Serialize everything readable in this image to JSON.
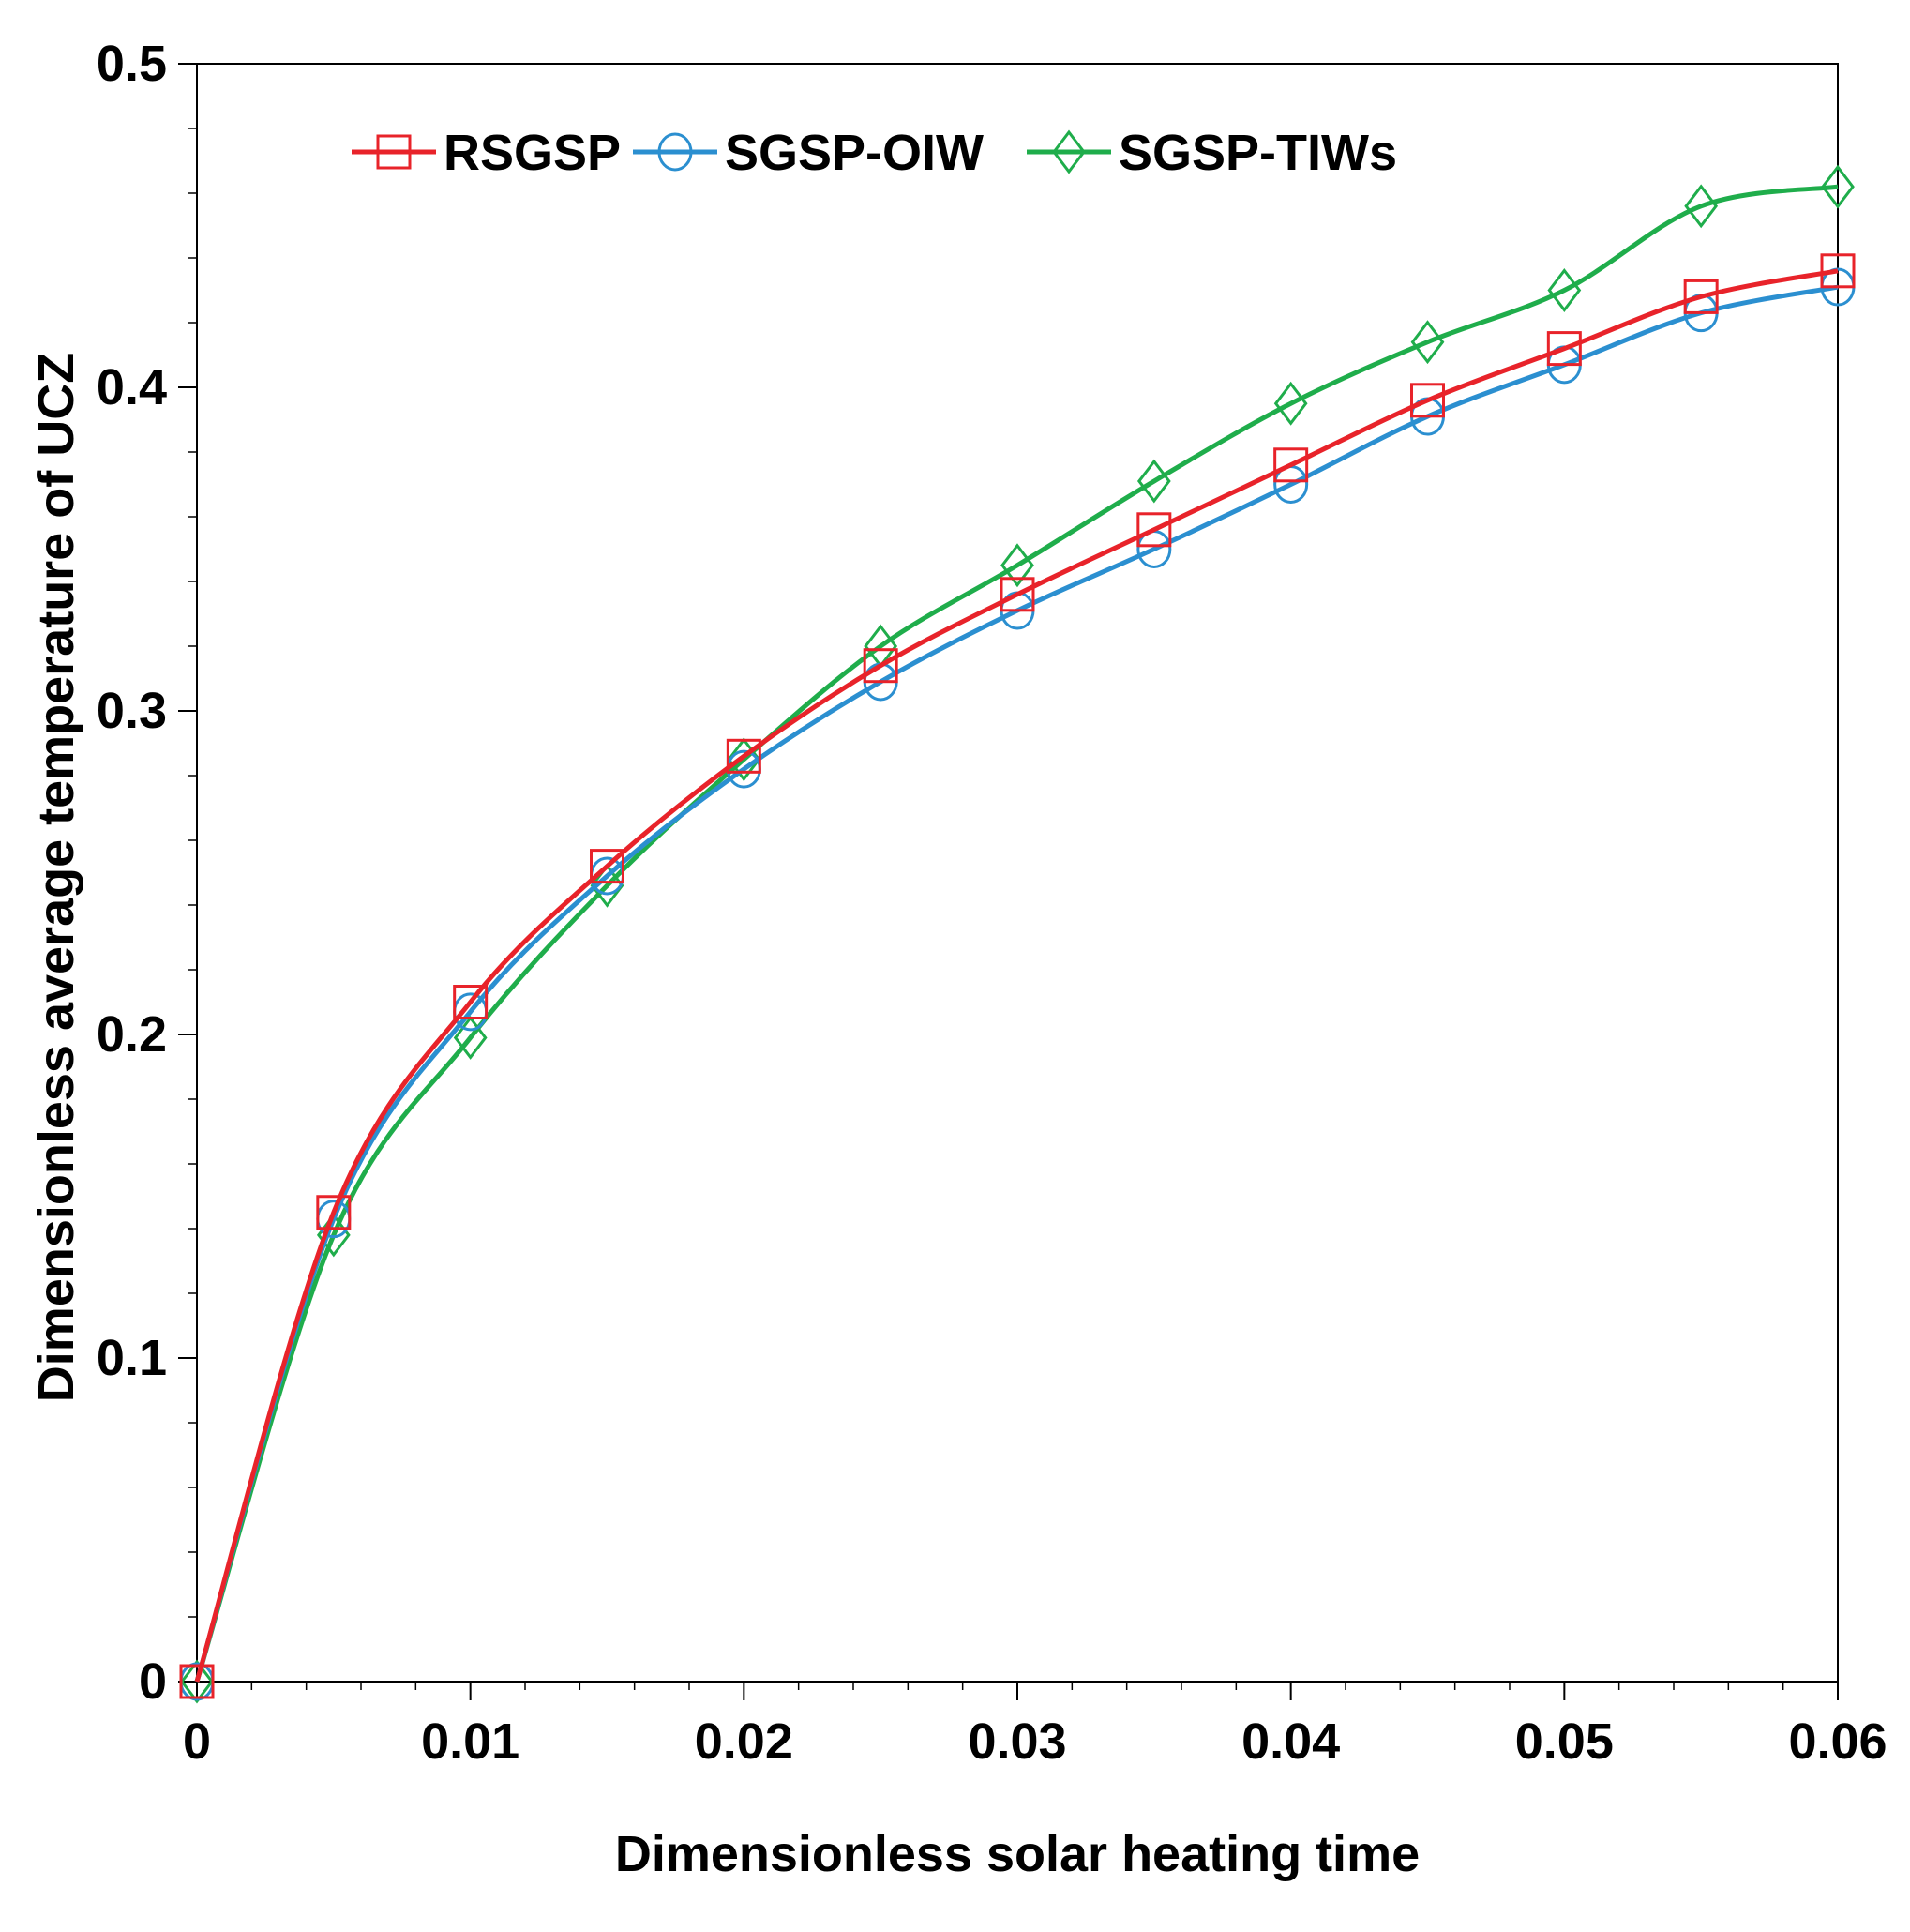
{
  "chart_data": {
    "type": "line",
    "title": "",
    "xlabel": "Dimensionless solar heating time",
    "ylabel": "Dimensionless average temperature of UCZ",
    "xlim": [
      0,
      0.06
    ],
    "ylim": [
      0,
      0.5
    ],
    "xticks": [
      0,
      0.01,
      0.02,
      0.03,
      0.04,
      0.05,
      0.06
    ],
    "xtick_labels": [
      "0",
      "0.01",
      "0.02",
      "0.03",
      "0.04",
      "0.05",
      "0.06"
    ],
    "yticks": [
      0,
      0.1,
      0.2,
      0.3,
      0.4,
      0.5
    ],
    "ytick_labels": [
      "0",
      "0.1",
      "0.2",
      "0.3",
      "0.4",
      "0.5"
    ],
    "grid": false,
    "legend_position": "top-left",
    "x": [
      0,
      0.005,
      0.01,
      0.015,
      0.02,
      0.025,
      0.03,
      0.035,
      0.04,
      0.045,
      0.05,
      0.055,
      0.06
    ],
    "series": [
      {
        "name": "RSGSP",
        "color": "#e8232a",
        "marker": "square",
        "values": [
          0.0,
          0.145,
          0.21,
          0.252,
          0.286,
          0.314,
          0.336,
          0.356,
          0.376,
          0.396,
          0.412,
          0.428,
          0.436
        ]
      },
      {
        "name": "SGSP-OIW",
        "color": "#2b8fd0",
        "marker": "circle",
        "values": [
          0.0,
          0.143,
          0.207,
          0.249,
          0.282,
          0.309,
          0.331,
          0.35,
          0.37,
          0.391,
          0.407,
          0.423,
          0.431
        ]
      },
      {
        "name": "SGSP-TIWs",
        "color": "#1fad4b",
        "marker": "diamond",
        "values": [
          0.0,
          0.138,
          0.199,
          0.246,
          0.285,
          0.32,
          0.345,
          0.371,
          0.395,
          0.414,
          0.43,
          0.456,
          0.462
        ]
      }
    ]
  }
}
